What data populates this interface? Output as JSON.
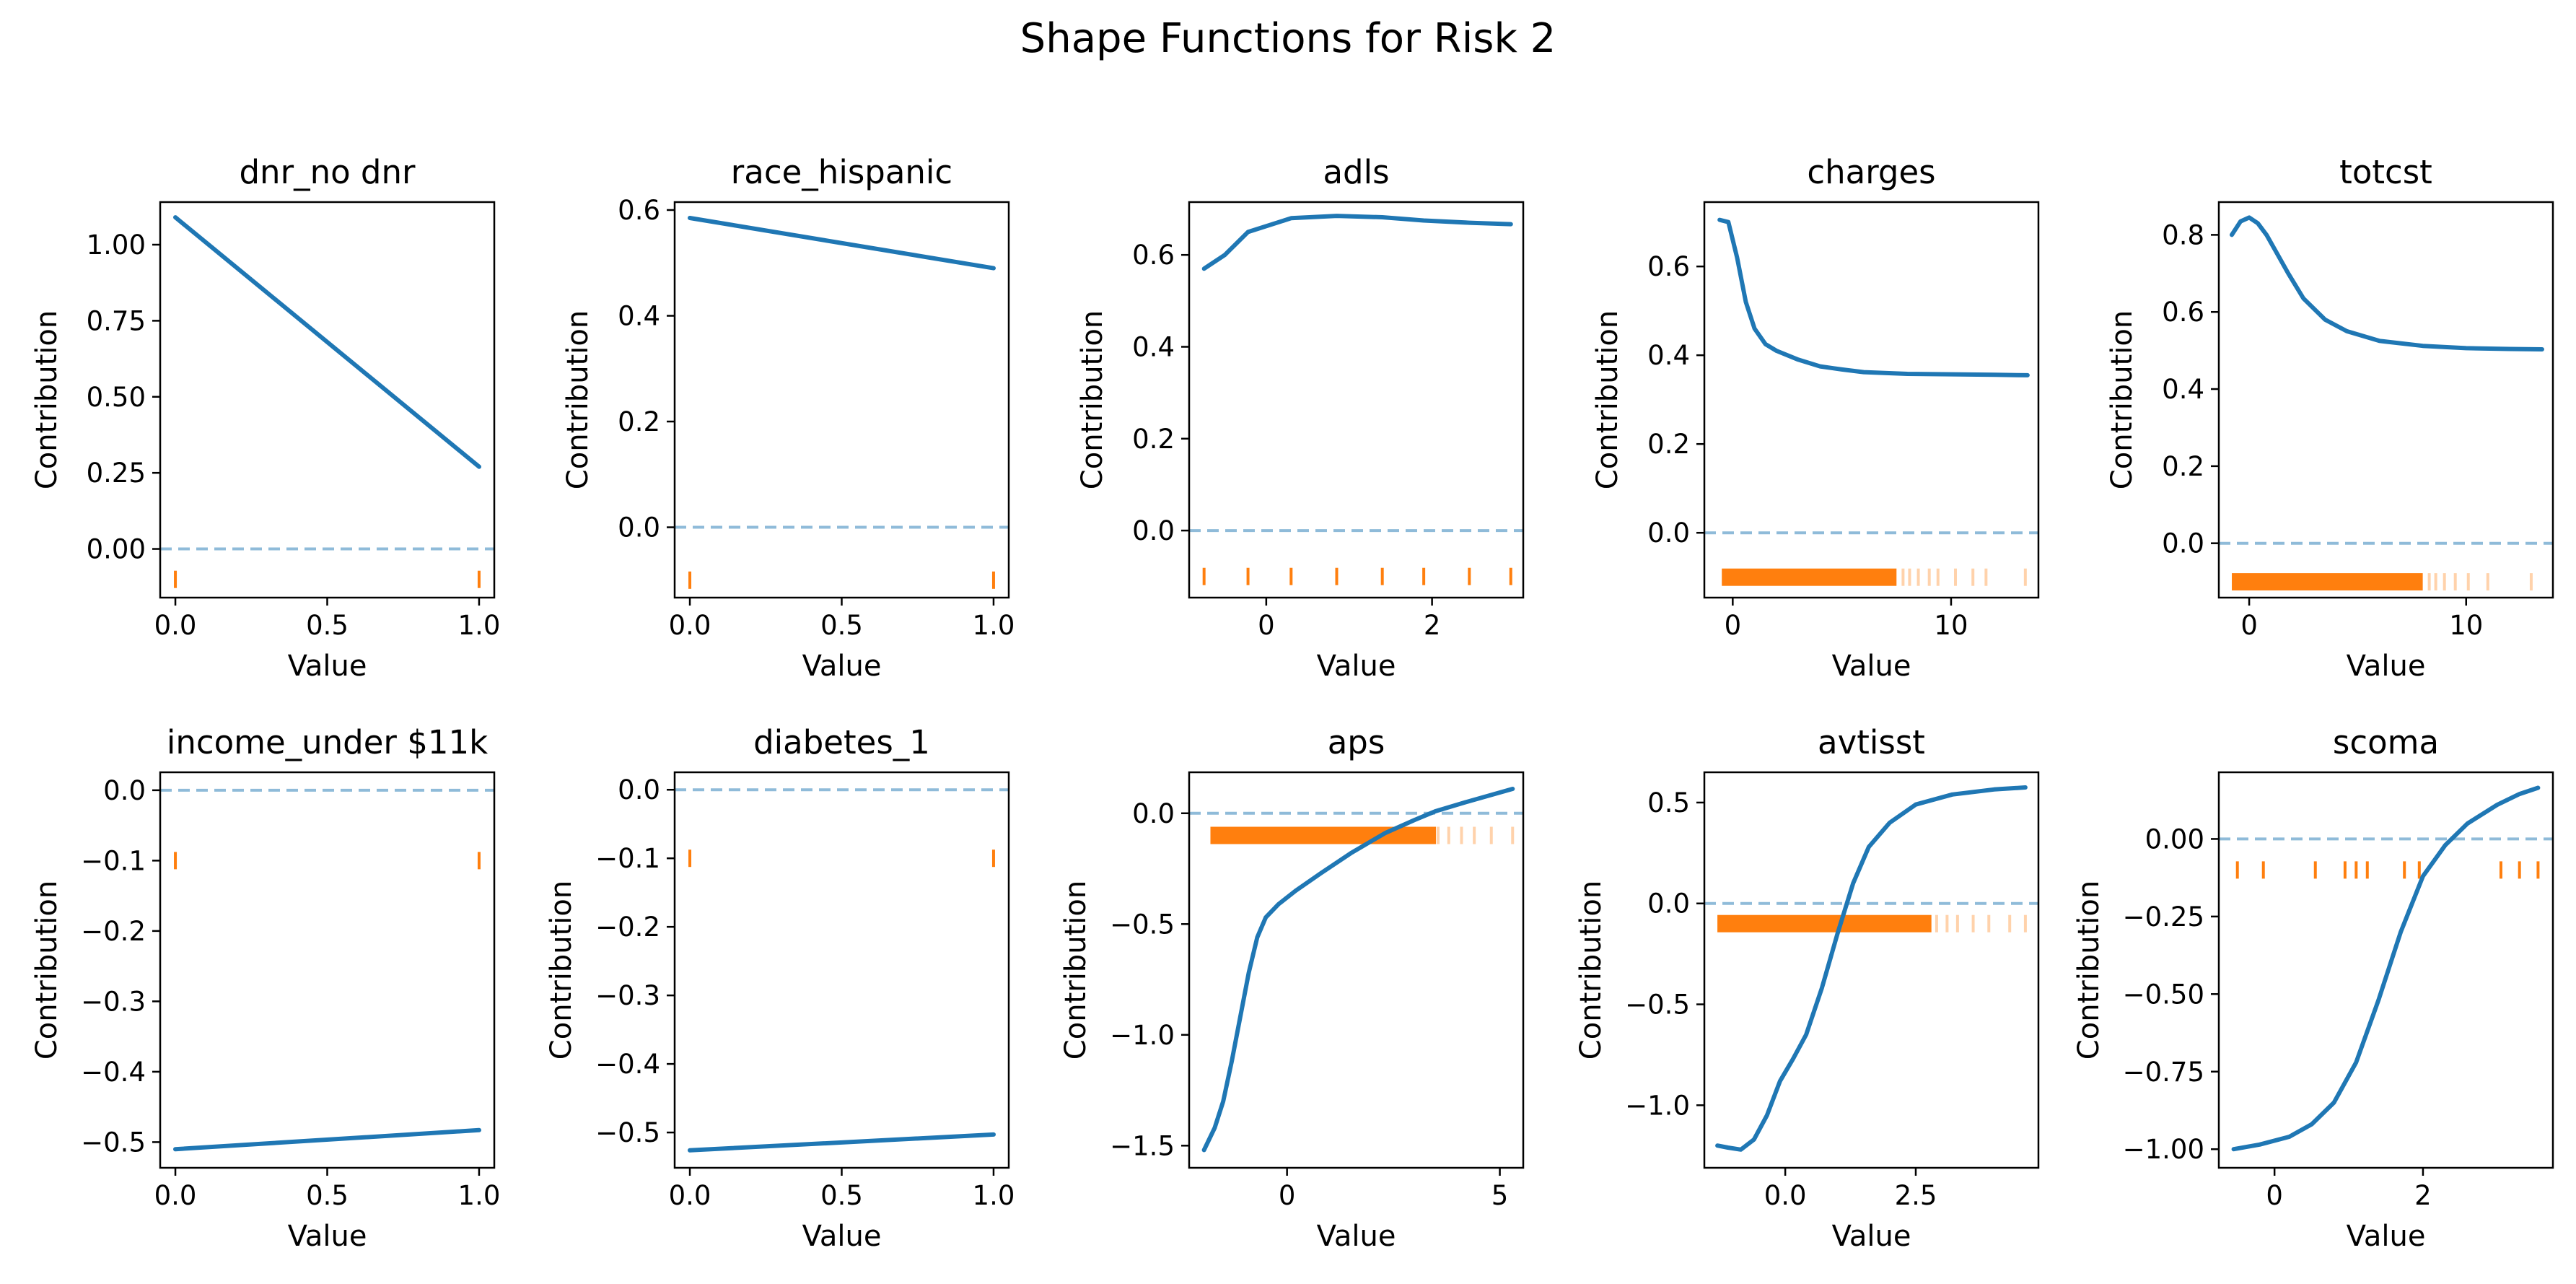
{
  "figure": {
    "title": "Shape Functions for Risk 2"
  },
  "colors": {
    "line": "#1f77b4",
    "rug": "#ff7f0e",
    "zero": "#1f77b4"
  },
  "chart_data": [
    {
      "type": "line",
      "title": "dnr_no dnr",
      "xlabel": "Value",
      "ylabel": "Contribution",
      "xlim": [
        -0.05,
        1.05
      ],
      "ylim": [
        -0.16,
        1.14
      ],
      "xticks": [
        0,
        0.5,
        1
      ],
      "xtick_labels": [
        "0.0",
        "0.5",
        "1.0"
      ],
      "yticks": [
        0,
        0.25,
        0.5,
        0.75,
        1
      ],
      "ytick_labels": [
        "0.00",
        "0.25",
        "0.50",
        "0.75",
        "1.00"
      ],
      "x": [
        0,
        1
      ],
      "y": [
        1.09,
        0.27
      ],
      "rug_y": -0.1,
      "rug_x": [
        0,
        1
      ],
      "rug_dense": null
    },
    {
      "type": "line",
      "title": "race_hispanic",
      "xlabel": "Value",
      "ylabel": "Contribution",
      "xlim": [
        -0.05,
        1.05
      ],
      "ylim": [
        -0.133,
        0.615
      ],
      "xticks": [
        0,
        0.5,
        1
      ],
      "xtick_labels": [
        "0.0",
        "0.5",
        "1.0"
      ],
      "yticks": [
        0,
        0.2,
        0.4,
        0.6
      ],
      "ytick_labels": [
        "0.0",
        "0.2",
        "0.4",
        "0.6"
      ],
      "x": [
        0,
        1
      ],
      "y": [
        0.585,
        0.49
      ],
      "rug_y": -0.1,
      "rug_x": [
        0,
        1
      ],
      "rug_dense": null
    },
    {
      "type": "line",
      "title": "adls",
      "xlabel": "Value",
      "ylabel": "Contribution",
      "xlim": [
        -0.93,
        3.1
      ],
      "ylim": [
        -0.146,
        0.715
      ],
      "xticks": [
        0,
        2
      ],
      "xtick_labels": [
        "0",
        "2"
      ],
      "yticks": [
        0,
        0.2,
        0.4,
        0.6
      ],
      "ytick_labels": [
        "0.0",
        "0.2",
        "0.4",
        "0.6"
      ],
      "x": [
        -0.75,
        -0.5,
        -0.22,
        0.3,
        0.85,
        1.4,
        1.9,
        2.45,
        2.95
      ],
      "y": [
        0.57,
        0.6,
        0.65,
        0.68,
        0.685,
        0.682,
        0.675,
        0.67,
        0.667
      ],
      "rug_y": -0.1,
      "rug_x": [
        -0.75,
        -0.22,
        0.3,
        0.85,
        1.4,
        1.9,
        2.45,
        2.95
      ],
      "rug_dense": null
    },
    {
      "type": "line",
      "title": "charges",
      "xlabel": "Value",
      "ylabel": "Contribution",
      "xlim": [
        -1.3,
        14.0
      ],
      "ylim": [
        -0.146,
        0.745
      ],
      "xticks": [
        0,
        10
      ],
      "xtick_labels": [
        "0",
        "10"
      ],
      "yticks": [
        0,
        0.2,
        0.4,
        0.6
      ],
      "ytick_labels": [
        "0.0",
        "0.2",
        "0.4",
        "0.6"
      ],
      "x": [
        -0.6,
        -0.2,
        0.2,
        0.6,
        1.0,
        1.5,
        2.0,
        3.0,
        4.0,
        5.0,
        6.0,
        8.0,
        10.0,
        12.0,
        13.5
      ],
      "y": [
        0.705,
        0.7,
        0.62,
        0.52,
        0.46,
        0.425,
        0.41,
        0.39,
        0.375,
        0.368,
        0.362,
        0.358,
        0.357,
        0.356,
        0.355
      ],
      "rug_y": -0.1,
      "rug_x": [
        7.8,
        8.1,
        8.5,
        9.0,
        9.4,
        10.2,
        11.0,
        11.6,
        13.4
      ],
      "rug_dense": {
        "from": -0.5,
        "to": 7.5
      }
    },
    {
      "type": "line",
      "title": "totcst",
      "xlabel": "Value",
      "ylabel": "Contribution",
      "xlim": [
        -1.4,
        14.0
      ],
      "ylim": [
        -0.141,
        0.885
      ],
      "xticks": [
        0,
        10
      ],
      "xtick_labels": [
        "0",
        "10"
      ],
      "yticks": [
        0,
        0.2,
        0.4,
        0.6,
        0.8
      ],
      "ytick_labels": [
        "0.0",
        "0.2",
        "0.4",
        "0.6",
        "0.8"
      ],
      "x": [
        -0.8,
        -0.4,
        0.0,
        0.4,
        0.8,
        1.2,
        1.8,
        2.5,
        3.5,
        4.5,
        6.0,
        8.0,
        10.0,
        12.0,
        13.5
      ],
      "y": [
        0.8,
        0.835,
        0.845,
        0.83,
        0.8,
        0.76,
        0.7,
        0.635,
        0.58,
        0.55,
        0.525,
        0.512,
        0.506,
        0.504,
        0.503
      ],
      "rug_y": -0.1,
      "rug_x": [
        8.3,
        8.6,
        9.0,
        9.5,
        10.1,
        11.0,
        13.0
      ],
      "rug_dense": {
        "from": -0.8,
        "to": 8.0
      }
    },
    {
      "type": "line",
      "title": "income_under $11k",
      "xlabel": "Value",
      "ylabel": "Contribution",
      "xlim": [
        -0.05,
        1.05
      ],
      "ylim": [
        -0.5365,
        0.0255
      ],
      "xticks": [
        0,
        0.5,
        1
      ],
      "xtick_labels": [
        "0.0",
        "0.5",
        "1.0"
      ],
      "yticks": [
        0,
        -0.1,
        -0.2,
        -0.3,
        -0.4,
        -0.5
      ],
      "ytick_labels": [
        "0.0",
        "−0.1",
        "−0.2",
        "−0.3",
        "−0.4",
        "−0.5"
      ],
      "x": [
        0,
        1
      ],
      "y": [
        -0.51,
        -0.483
      ],
      "rug_y": -0.1,
      "rug_x": [
        0,
        1
      ],
      "rug_dense": null
    },
    {
      "type": "line",
      "title": "diabetes_1",
      "xlabel": "Value",
      "ylabel": "Contribution",
      "xlim": [
        -0.05,
        1.05
      ],
      "ylim": [
        -0.5515,
        0.0255
      ],
      "xticks": [
        0,
        0.5,
        1
      ],
      "xtick_labels": [
        "0.0",
        "0.5",
        "1.0"
      ],
      "yticks": [
        0,
        -0.1,
        -0.2,
        -0.3,
        -0.4,
        -0.5
      ],
      "ytick_labels": [
        "0.0",
        "−0.1",
        "−0.2",
        "−0.3",
        "−0.4",
        "−0.5"
      ],
      "x": [
        0,
        1
      ],
      "y": [
        -0.526,
        -0.503
      ],
      "rug_y": -0.1,
      "rug_x": [
        0,
        1
      ],
      "rug_dense": null
    },
    {
      "type": "line",
      "title": "aps",
      "xlabel": "Value",
      "ylabel": "Contribution",
      "xlim": [
        -2.3,
        5.55
      ],
      "ylim": [
        -1.6,
        0.185
      ],
      "xticks": [
        0,
        5
      ],
      "xtick_labels": [
        "0",
        "5"
      ],
      "yticks": [
        0,
        -0.5,
        -1,
        -1.5
      ],
      "ytick_labels": [
        "0.0",
        "−0.5",
        "−1.0",
        "−1.5"
      ],
      "x": [
        -1.95,
        -1.7,
        -1.5,
        -1.3,
        -1.1,
        -0.9,
        -0.7,
        -0.5,
        -0.2,
        0.2,
        0.8,
        1.5,
        2.3,
        3.0,
        3.5,
        4.2,
        5.3
      ],
      "y": [
        -1.52,
        -1.42,
        -1.3,
        -1.12,
        -0.92,
        -0.72,
        -0.56,
        -0.47,
        -0.41,
        -0.35,
        -0.27,
        -0.18,
        -0.09,
        -0.03,
        0.01,
        0.05,
        0.11
      ],
      "rug_y": -0.1,
      "rug_x": [
        3.55,
        3.8,
        4.1,
        4.4,
        4.8,
        5.3
      ],
      "rug_dense": {
        "from": -1.8,
        "to": 3.5
      }
    },
    {
      "type": "line",
      "title": "avtisst",
      "xlabel": "Value",
      "ylabel": "Contribution",
      "xlim": [
        -1.55,
        4.85
      ],
      "ylim": [
        -1.31,
        0.65
      ],
      "xticks": [
        0,
        2.5
      ],
      "xtick_labels": [
        "0.0",
        "2.5"
      ],
      "yticks": [
        0.5,
        0,
        -0.5,
        -1
      ],
      "ytick_labels": [
        "0.5",
        "0.0",
        "−0.5",
        "−1.0"
      ],
      "x": [
        -1.3,
        -1.1,
        -0.85,
        -0.6,
        -0.35,
        -0.1,
        0.15,
        0.4,
        0.7,
        1.0,
        1.3,
        1.6,
        2.0,
        2.5,
        3.2,
        4.0,
        4.6
      ],
      "y": [
        -1.2,
        -1.21,
        -1.22,
        -1.17,
        -1.05,
        -0.88,
        -0.77,
        -0.65,
        -0.42,
        -0.15,
        0.1,
        0.28,
        0.4,
        0.49,
        0.54,
        0.565,
        0.575
      ],
      "rug_y": -0.1,
      "rug_x": [
        2.9,
        3.1,
        3.3,
        3.6,
        3.9,
        4.3,
        4.6
      ],
      "rug_dense": {
        "from": -1.3,
        "to": 2.8
      }
    },
    {
      "type": "line",
      "title": "scoma",
      "xlabel": "Value",
      "ylabel": "Contribution",
      "xlim": [
        -0.75,
        3.75
      ],
      "ylim": [
        -1.06,
        0.215
      ],
      "xticks": [
        0,
        2
      ],
      "xtick_labels": [
        "0",
        "2"
      ],
      "yticks": [
        0,
        -0.25,
        -0.5,
        -0.75,
        -1
      ],
      "ytick_labels": [
        "0.00",
        "−0.25",
        "−0.50",
        "−0.75",
        "−1.00"
      ],
      "x": [
        -0.55,
        -0.2,
        0.2,
        0.5,
        0.8,
        1.1,
        1.4,
        1.7,
        2.0,
        2.3,
        2.6,
        3.0,
        3.3,
        3.55
      ],
      "y": [
        -1.0,
        -0.985,
        -0.96,
        -0.92,
        -0.85,
        -0.72,
        -0.52,
        -0.3,
        -0.12,
        -0.02,
        0.05,
        0.11,
        0.145,
        0.165
      ],
      "rug_y": -0.1,
      "rug_x": [
        -0.5,
        -0.15,
        0.55,
        0.95,
        1.1,
        1.25,
        1.75,
        1.95,
        3.05,
        3.3,
        3.55
      ],
      "rug_dense": null
    }
  ]
}
